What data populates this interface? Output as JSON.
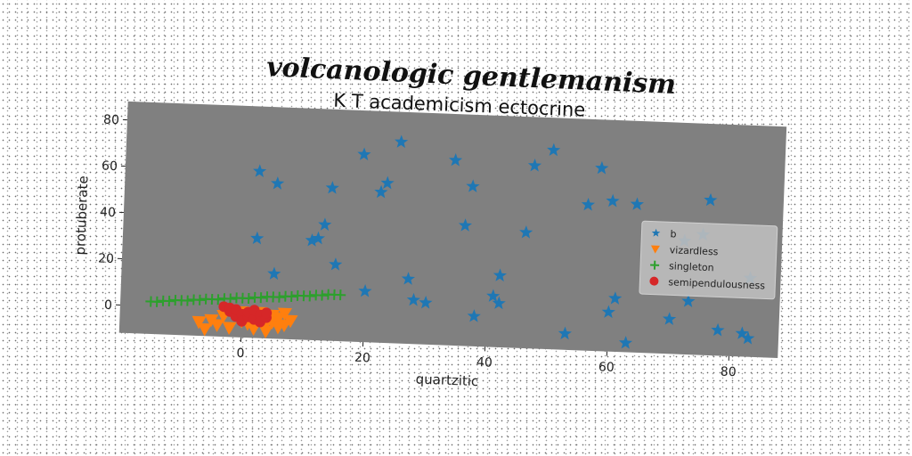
{
  "suptitle": "volcanologic gentlemanism",
  "chart_data": {
    "type": "scatter",
    "title": "K T academicism ectocrine",
    "xlabel": "quartzitic",
    "ylabel": "protuberate",
    "xlim": [
      -20,
      88
    ],
    "ylim": [
      -12,
      88
    ],
    "xticks": [
      0,
      20,
      40,
      60,
      80
    ],
    "yticks": [
      0,
      20,
      40,
      60,
      80
    ],
    "xtick_labels": [
      "0",
      "20",
      "40",
      "60",
      "80"
    ],
    "ytick_labels": [
      "0",
      "20",
      "40",
      "60",
      "80"
    ],
    "grid": false,
    "background": "#808080",
    "legend_position": "center-right",
    "series": [
      {
        "name": "b",
        "marker": "star",
        "color": "#1f77b4",
        "points": [
          [
            2,
            60
          ],
          [
            5,
            55
          ],
          [
            2,
            31
          ],
          [
            5,
            16
          ],
          [
            11,
            31
          ],
          [
            12,
            32
          ],
          [
            13,
            38
          ],
          [
            14,
            54
          ],
          [
            15,
            21
          ],
          [
            19,
            69
          ],
          [
            20,
            10
          ],
          [
            22,
            53
          ],
          [
            23,
            57
          ],
          [
            25,
            75
          ],
          [
            27,
            16
          ],
          [
            28,
            7
          ],
          [
            30,
            6
          ],
          [
            34,
            68
          ],
          [
            36,
            40
          ],
          [
            37,
            57
          ],
          [
            38,
            1
          ],
          [
            41,
            10
          ],
          [
            42,
            7
          ],
          [
            42,
            19
          ],
          [
            46,
            38
          ],
          [
            47,
            67
          ],
          [
            50,
            74
          ],
          [
            53,
            -5
          ],
          [
            56,
            51
          ],
          [
            58,
            67
          ],
          [
            60,
            53
          ],
          [
            60,
            5
          ],
          [
            61,
            11
          ],
          [
            63,
            -8
          ],
          [
            64,
            52
          ],
          [
            70,
            3
          ],
          [
            72,
            37
          ],
          [
            73,
            11
          ],
          [
            75,
            40
          ],
          [
            76,
            55
          ],
          [
            78,
            -1
          ],
          [
            82,
            -2
          ],
          [
            83,
            -4
          ],
          [
            83,
            22
          ]
        ]
      },
      {
        "name": "vizardless",
        "marker": "triangle_down",
        "color": "#ff7f0e",
        "points": [
          [
            -7,
            -6
          ],
          [
            -6,
            -9
          ],
          [
            -5,
            -5
          ],
          [
            -4,
            -7
          ],
          [
            -3,
            -3
          ],
          [
            -2,
            -8
          ],
          [
            -1,
            -2
          ],
          [
            0,
            -5
          ],
          [
            0,
            -1
          ],
          [
            1,
            -6
          ],
          [
            2,
            -3
          ],
          [
            2,
            -8
          ],
          [
            3,
            -1
          ],
          [
            3,
            -4
          ],
          [
            4,
            -6
          ],
          [
            4,
            -9
          ],
          [
            5,
            -2
          ],
          [
            5,
            -5
          ],
          [
            6,
            -3
          ],
          [
            6,
            -7
          ],
          [
            7,
            -1
          ],
          [
            7,
            -6
          ],
          [
            8,
            -4
          ]
        ]
      },
      {
        "name": "singleton",
        "marker": "plus",
        "color": "#2ca02c",
        "points": [
          [
            -15,
            2
          ],
          [
            -14,
            2
          ],
          [
            -13,
            2.5
          ],
          [
            -12,
            2.5
          ],
          [
            -11,
            3
          ],
          [
            -10,
            3
          ],
          [
            -9,
            3
          ],
          [
            -8,
            3.5
          ],
          [
            -7,
            3.5
          ],
          [
            -6,
            4
          ],
          [
            -5,
            4
          ],
          [
            -4,
            4
          ],
          [
            -3,
            4.5
          ],
          [
            -2,
            4.5
          ],
          [
            -1,
            5
          ],
          [
            0,
            5
          ],
          [
            1,
            5
          ],
          [
            2,
            5.5
          ],
          [
            3,
            5.5
          ],
          [
            4,
            6
          ],
          [
            5,
            6
          ],
          [
            6,
            6
          ],
          [
            7,
            6.5
          ],
          [
            8,
            6.5
          ],
          [
            9,
            7
          ],
          [
            10,
            7
          ],
          [
            11,
            7
          ],
          [
            12,
            7.5
          ],
          [
            13,
            7.5
          ],
          [
            14,
            8
          ],
          [
            15,
            8
          ],
          [
            16,
            8
          ]
        ]
      },
      {
        "name": "semipendulousness",
        "marker": "circle",
        "color": "#d62728",
        "points": [
          [
            -3,
            1
          ],
          [
            -2,
            -1
          ],
          [
            -2,
            0.5
          ],
          [
            -1,
            -3
          ],
          [
            -1,
            0
          ],
          [
            0,
            -2
          ],
          [
            0,
            -5
          ],
          [
            1,
            -3
          ],
          [
            1,
            -1
          ],
          [
            2,
            -4
          ],
          [
            2,
            0
          ],
          [
            3,
            -2
          ],
          [
            3,
            -5
          ],
          [
            4,
            -3
          ],
          [
            4,
            -1
          ]
        ]
      }
    ]
  }
}
